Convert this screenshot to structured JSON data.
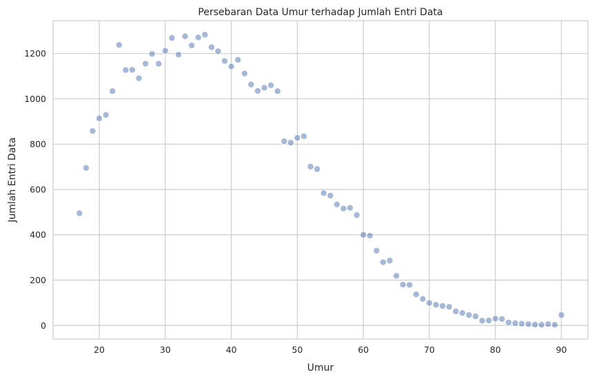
{
  "chart_data": {
    "type": "scatter",
    "title": "Persebaran Data Umur terhadap Jumlah Entri Data",
    "xlabel": "Umur",
    "ylabel": "Jumlah Entri Data",
    "xlim": [
      13,
      94
    ],
    "ylim": [
      -60,
      1345
    ],
    "xticks": [
      20,
      30,
      40,
      50,
      60,
      70,
      80,
      90
    ],
    "yticks": [
      0,
      200,
      400,
      600,
      800,
      1000,
      1200
    ],
    "grid": true,
    "point_color": "#4c72b0",
    "x": [
      17,
      18,
      19,
      20,
      21,
      22,
      23,
      24,
      25,
      26,
      27,
      28,
      29,
      30,
      31,
      32,
      33,
      34,
      35,
      36,
      37,
      38,
      39,
      40,
      41,
      42,
      43,
      44,
      45,
      46,
      47,
      48,
      49,
      50,
      51,
      52,
      53,
      54,
      55,
      56,
      57,
      58,
      59,
      60,
      61,
      62,
      63,
      64,
      65,
      66,
      67,
      68,
      69,
      70,
      71,
      72,
      73,
      74,
      75,
      76,
      77,
      78,
      79,
      80,
      81,
      82,
      83,
      84,
      85,
      86,
      87,
      88,
      89,
      90
    ],
    "y": [
      495,
      695,
      858,
      914,
      929,
      1034,
      1238,
      1127,
      1128,
      1091,
      1155,
      1198,
      1155,
      1212,
      1269,
      1195,
      1276,
      1236,
      1271,
      1283,
      1228,
      1210,
      1167,
      1143,
      1172,
      1112,
      1063,
      1035,
      1049,
      1060,
      1034,
      813,
      807,
      828,
      835,
      701,
      690,
      584,
      573,
      534,
      516,
      519,
      487,
      400,
      396,
      330,
      279,
      286,
      219,
      180,
      179,
      137,
      117,
      99,
      91,
      86,
      82,
      62,
      55,
      46,
      40,
      21,
      22,
      30,
      28,
      13,
      10,
      8,
      6,
      4,
      3,
      6,
      3,
      46
    ]
  }
}
